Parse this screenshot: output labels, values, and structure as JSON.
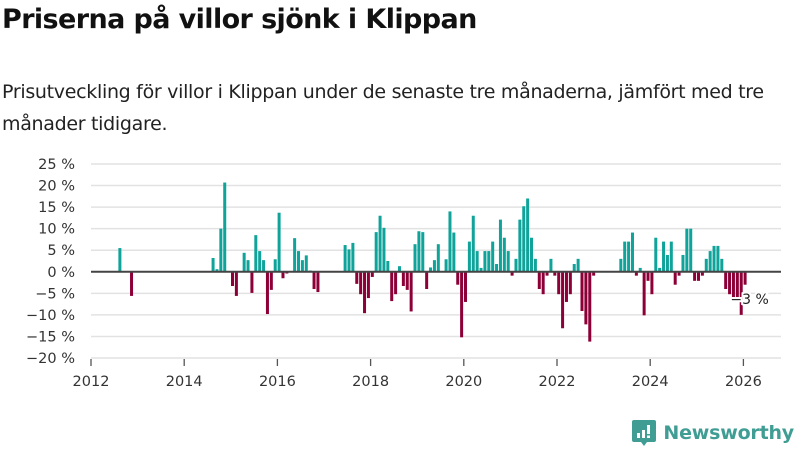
{
  "header": {
    "title": "Priserna på villor sjönk i Klippan",
    "subtitle": "Prisutveckling för villor i Klippan under de senaste tre månaderna, jämfört med tre månader tidigare."
  },
  "brand": {
    "name": "Newsworthy",
    "color": "#3f9d94"
  },
  "colors": {
    "positive": "#0fa39a",
    "negative": "#8c0037",
    "zero_line": "#444444",
    "grid": "#e2e2e2"
  },
  "chart_data": {
    "type": "bar",
    "title": "Priserna på villor sjönk i Klippan",
    "xlabel": "",
    "ylabel": "",
    "unit": "%",
    "ylim": [
      -20,
      25
    ],
    "yticks": [
      25,
      20,
      15,
      10,
      5,
      0,
      -5,
      -10,
      -15,
      -20
    ],
    "ytick_labels": [
      "25 %",
      "20 %",
      "15 %",
      "10 %",
      "5 %",
      "0 %",
      "−5 %",
      "−10 %",
      "−15 %",
      "−20 %"
    ],
    "xlim": [
      "2012-01",
      "2026-09"
    ],
    "xticks": [
      "2012",
      "2014",
      "2016",
      "2018",
      "2020",
      "2022",
      "2024",
      "2026"
    ],
    "grid": true,
    "legend": "none",
    "annotation": {
      "date": "2026-01",
      "text": "−3 %"
    },
    "series": [
      {
        "name": "Prisutveckling",
        "points": [
          {
            "date": "2012-08",
            "value": 5.5
          },
          {
            "date": "2012-11",
            "value": -5.6
          },
          {
            "date": "2014-08",
            "value": 3.2
          },
          {
            "date": "2014-09",
            "value": 0.6
          },
          {
            "date": "2014-10",
            "value": 10.0
          },
          {
            "date": "2014-11",
            "value": 20.7
          },
          {
            "date": "2015-01",
            "value": -3.3
          },
          {
            "date": "2015-02",
            "value": -5.6
          },
          {
            "date": "2015-04",
            "value": 4.4
          },
          {
            "date": "2015-05",
            "value": 2.7
          },
          {
            "date": "2015-06",
            "value": -4.9
          },
          {
            "date": "2015-07",
            "value": 8.5
          },
          {
            "date": "2015-08",
            "value": 4.8
          },
          {
            "date": "2015-09",
            "value": 2.7
          },
          {
            "date": "2015-10",
            "value": -9.8
          },
          {
            "date": "2015-11",
            "value": -4.2
          },
          {
            "date": "2015-12",
            "value": 2.9
          },
          {
            "date": "2016-01",
            "value": 13.7
          },
          {
            "date": "2016-02",
            "value": -1.5
          },
          {
            "date": "2016-03",
            "value": -0.4
          },
          {
            "date": "2016-05",
            "value": 7.8
          },
          {
            "date": "2016-06",
            "value": 4.8
          },
          {
            "date": "2016-07",
            "value": 2.7
          },
          {
            "date": "2016-08",
            "value": 3.8
          },
          {
            "date": "2016-09",
            "value": 0.3
          },
          {
            "date": "2016-10",
            "value": -4.0
          },
          {
            "date": "2016-11",
            "value": -4.7
          },
          {
            "date": "2017-06",
            "value": 6.2
          },
          {
            "date": "2017-07",
            "value": 5.2
          },
          {
            "date": "2017-08",
            "value": 6.7
          },
          {
            "date": "2017-09",
            "value": -2.8
          },
          {
            "date": "2017-10",
            "value": -5.2
          },
          {
            "date": "2017-11",
            "value": -9.6
          },
          {
            "date": "2017-12",
            "value": -6.1
          },
          {
            "date": "2018-01",
            "value": -1.2
          },
          {
            "date": "2018-02",
            "value": 9.2
          },
          {
            "date": "2018-03",
            "value": 13.0
          },
          {
            "date": "2018-04",
            "value": 10.2
          },
          {
            "date": "2018-05",
            "value": 2.5
          },
          {
            "date": "2018-06",
            "value": -6.8
          },
          {
            "date": "2018-07",
            "value": -5.2
          },
          {
            "date": "2018-08",
            "value": 1.3
          },
          {
            "date": "2018-09",
            "value": -3.3
          },
          {
            "date": "2018-10",
            "value": -4.2
          },
          {
            "date": "2018-11",
            "value": -9.2
          },
          {
            "date": "2018-12",
            "value": 6.4
          },
          {
            "date": "2019-01",
            "value": 9.4
          },
          {
            "date": "2019-02",
            "value": 9.2
          },
          {
            "date": "2019-03",
            "value": -4.0
          },
          {
            "date": "2019-04",
            "value": 1.0
          },
          {
            "date": "2019-05",
            "value": 2.7
          },
          {
            "date": "2019-06",
            "value": 6.4
          },
          {
            "date": "2019-08",
            "value": 2.9
          },
          {
            "date": "2019-09",
            "value": 14.0
          },
          {
            "date": "2019-10",
            "value": 9.1
          },
          {
            "date": "2019-11",
            "value": -3.0
          },
          {
            "date": "2019-12",
            "value": -15.2
          },
          {
            "date": "2020-01",
            "value": -7.0
          },
          {
            "date": "2020-02",
            "value": 7.0
          },
          {
            "date": "2020-03",
            "value": 13.0
          },
          {
            "date": "2020-04",
            "value": 4.8
          },
          {
            "date": "2020-05",
            "value": 0.9
          },
          {
            "date": "2020-06",
            "value": 4.8
          },
          {
            "date": "2020-07",
            "value": 4.8
          },
          {
            "date": "2020-08",
            "value": 7.0
          },
          {
            "date": "2020-09",
            "value": 1.8
          },
          {
            "date": "2020-10",
            "value": 12.1
          },
          {
            "date": "2020-11",
            "value": 7.9
          },
          {
            "date": "2020-12",
            "value": 4.8
          },
          {
            "date": "2021-01",
            "value": -0.9
          },
          {
            "date": "2021-02",
            "value": 3.0
          },
          {
            "date": "2021-03",
            "value": 12.1
          },
          {
            "date": "2021-04",
            "value": 15.2
          },
          {
            "date": "2021-05",
            "value": 17.0
          },
          {
            "date": "2021-06",
            "value": 7.9
          },
          {
            "date": "2021-07",
            "value": 3.0
          },
          {
            "date": "2021-08",
            "value": -4.0
          },
          {
            "date": "2021-09",
            "value": -5.2
          },
          {
            "date": "2021-10",
            "value": -0.9
          },
          {
            "date": "2021-11",
            "value": 3.0
          },
          {
            "date": "2021-12",
            "value": -0.9
          },
          {
            "date": "2022-01",
            "value": -5.2
          },
          {
            "date": "2022-02",
            "value": -13.1
          },
          {
            "date": "2022-03",
            "value": -7.0
          },
          {
            "date": "2022-04",
            "value": -5.2
          },
          {
            "date": "2022-05",
            "value": 1.8
          },
          {
            "date": "2022-06",
            "value": 3.0
          },
          {
            "date": "2022-07",
            "value": -9.1
          },
          {
            "date": "2022-08",
            "value": -12.2
          },
          {
            "date": "2022-09",
            "value": -16.2
          },
          {
            "date": "2022-10",
            "value": -0.9
          },
          {
            "date": "2023-05",
            "value": 3.0
          },
          {
            "date": "2023-06",
            "value": 7.0
          },
          {
            "date": "2023-07",
            "value": 7.0
          },
          {
            "date": "2023-08",
            "value": 9.1
          },
          {
            "date": "2023-09",
            "value": -0.9
          },
          {
            "date": "2023-10",
            "value": 0.9
          },
          {
            "date": "2023-11",
            "value": -10.1
          },
          {
            "date": "2023-12",
            "value": -2.1
          },
          {
            "date": "2024-01",
            "value": -5.2
          },
          {
            "date": "2024-02",
            "value": 7.9
          },
          {
            "date": "2024-03",
            "value": 0.9
          },
          {
            "date": "2024-04",
            "value": 7.0
          },
          {
            "date": "2024-05",
            "value": 3.9
          },
          {
            "date": "2024-06",
            "value": 7.0
          },
          {
            "date": "2024-07",
            "value": -3.0
          },
          {
            "date": "2024-08",
            "value": -0.9
          },
          {
            "date": "2024-09",
            "value": 3.9
          },
          {
            "date": "2024-10",
            "value": 10.0
          },
          {
            "date": "2024-11",
            "value": 10.0
          },
          {
            "date": "2024-12",
            "value": -2.1
          },
          {
            "date": "2025-01",
            "value": -2.1
          },
          {
            "date": "2025-02",
            "value": -0.9
          },
          {
            "date": "2025-03",
            "value": 3.0
          },
          {
            "date": "2025-04",
            "value": 4.8
          },
          {
            "date": "2025-05",
            "value": 6.0
          },
          {
            "date": "2025-06",
            "value": 6.0
          },
          {
            "date": "2025-07",
            "value": 3.0
          },
          {
            "date": "2025-08",
            "value": -4.0
          },
          {
            "date": "2025-09",
            "value": -5.2
          },
          {
            "date": "2025-10",
            "value": -7.0
          },
          {
            "date": "2025-11",
            "value": -6.0
          },
          {
            "date": "2025-12",
            "value": -10.0
          },
          {
            "date": "2026-01",
            "value": -3.0
          }
        ]
      }
    ]
  }
}
